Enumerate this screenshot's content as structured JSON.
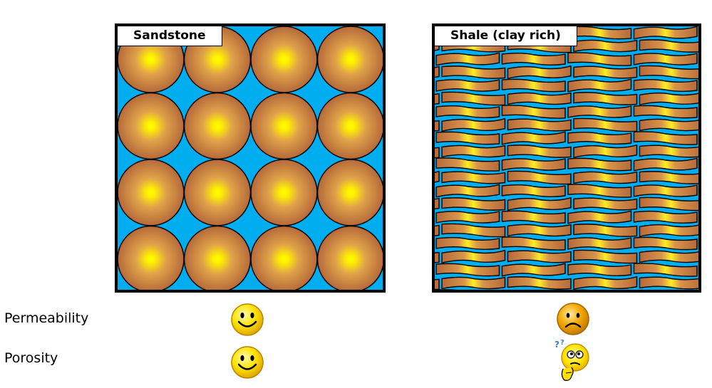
{
  "panels": {
    "sandstone": {
      "title": "Sandstone"
    },
    "shale": {
      "title": "Shale (clay rich)"
    }
  },
  "rows": {
    "permeability": "Permeability",
    "porosity": "Porosity"
  },
  "ratings": {
    "sandstone_permeability": "happy-face-icon",
    "sandstone_porosity": "happy-face-icon",
    "shale_permeability": "sad-face-icon",
    "shale_porosity": "confused-face-icon"
  },
  "colors": {
    "pore_fluid": "#00adef",
    "grain_edge": "#b5693a",
    "grain_core": "#ffff00",
    "border": "#000000"
  }
}
